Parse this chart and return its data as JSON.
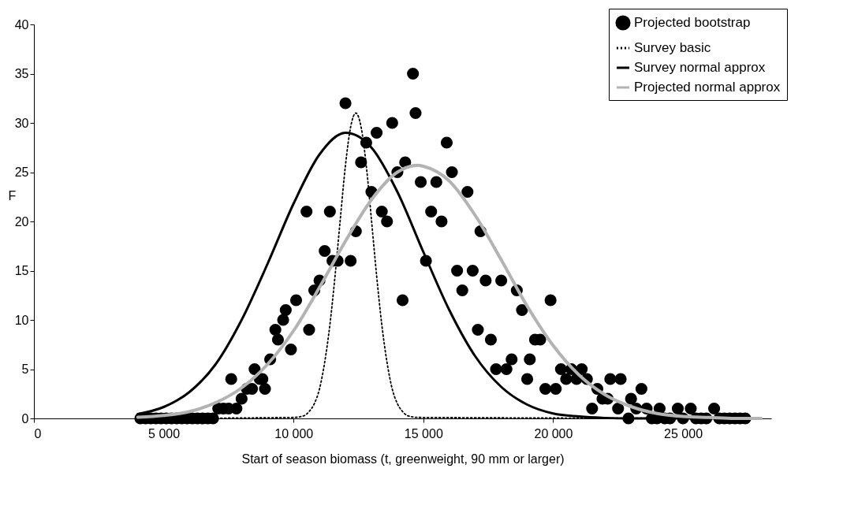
{
  "chart_data": {
    "type": "scatter",
    "xlabel": "Start of season biomass (t, greenweight, 90 mm or larger)",
    "ylabel": "F",
    "xlim": [
      0,
      28400
    ],
    "ylim": [
      0,
      40
    ],
    "xticks": [
      0,
      {
        "value": 5000,
        "label": "5 000"
      },
      {
        "value": 10000,
        "label": "10 000"
      },
      {
        "value": 15000,
        "label": "15 000"
      },
      {
        "value": 20000,
        "label": "20 000"
      },
      {
        "value": 25000,
        "label": "25 000"
      }
    ],
    "yticks": [
      0,
      5,
      10,
      15,
      20,
      25,
      30,
      35,
      40
    ],
    "grid": false,
    "legend": "top right",
    "series": [
      {
        "name": "Projected bootstrap",
        "type": "scatter",
        "marker": "circle",
        "color": "#000000",
        "x": [
          4100,
          4300,
          4500,
          4700,
          4900,
          5100,
          5300,
          5500,
          5700,
          5900,
          6100,
          6300,
          6500,
          6700,
          6900,
          7100,
          7300,
          7500,
          7600,
          7800,
          8000,
          8200,
          8400,
          8500,
          8700,
          8800,
          8900,
          9100,
          9300,
          9400,
          9600,
          9700,
          9900,
          10100,
          10500,
          10600,
          10800,
          11000,
          11200,
          11400,
          11500,
          11700,
          12000,
          12200,
          12400,
          12600,
          12800,
          13000,
          13200,
          13400,
          13600,
          13800,
          14000,
          14200,
          14300,
          14600,
          14700,
          14900,
          15100,
          15300,
          15500,
          15700,
          15900,
          16100,
          16300,
          16500,
          16700,
          16900,
          17100,
          17200,
          17400,
          17600,
          17800,
          18000,
          18200,
          18400,
          18600,
          18800,
          19000,
          19100,
          19300,
          19500,
          19700,
          19900,
          20100,
          20300,
          20500,
          20700,
          20900,
          21100,
          21300,
          21500,
          21700,
          21900,
          22100,
          22200,
          22500,
          22600,
          22900,
          23000,
          23200,
          23400,
          23600,
          23800,
          24000,
          24100,
          24300,
          24500,
          24800,
          25000,
          25300,
          25500,
          25700,
          25900,
          26200,
          26400,
          26600,
          26800,
          27000,
          27200,
          27400
        ],
        "values": [
          0,
          0,
          0,
          0,
          0,
          0,
          0,
          0,
          0,
          0,
          0,
          0,
          0,
          0,
          0,
          1,
          1,
          1,
          4,
          1,
          2,
          3,
          3,
          5,
          4,
          4,
          3,
          6,
          9,
          8,
          10,
          11,
          7,
          12,
          21,
          9,
          13,
          14,
          17,
          21,
          16,
          16,
          32,
          16,
          19,
          26,
          28,
          23,
          29,
          21,
          20,
          30,
          25,
          12,
          26,
          35,
          31,
          24,
          16,
          21,
          24,
          20,
          28,
          25,
          15,
          13,
          23,
          15,
          9,
          19,
          14,
          8,
          5,
          14,
          5,
          6,
          13,
          11,
          4,
          6,
          8,
          8,
          3,
          12,
          3,
          5,
          4,
          5,
          4,
          5,
          4,
          1,
          3,
          2,
          2,
          4,
          1,
          4,
          0,
          2,
          1,
          3,
          1,
          0,
          0,
          1,
          0,
          0,
          1,
          0,
          1,
          0,
          0,
          0,
          1,
          0,
          0,
          0,
          0,
          0,
          0
        ]
      },
      {
        "name": "Survey basic",
        "type": "line",
        "line_style": "dotted",
        "color": "#000000",
        "x": [
          4000,
          10000,
          10400,
          10600,
          10800,
          11000,
          11200,
          11400,
          11600,
          11800,
          12000,
          12200,
          12400,
          12600,
          12800,
          13000,
          13200,
          13400,
          13600,
          13800,
          14000,
          14200,
          14400,
          14800,
          28000
        ],
        "values": [
          0,
          0.1,
          0.27,
          0.7,
          1.5,
          3,
          5.7,
          9.5,
          14.5,
          20.2,
          25.7,
          29.6,
          31,
          29.6,
          25.7,
          20.2,
          14.5,
          9.5,
          5.7,
          3,
          1.5,
          0.7,
          0.27,
          0.1,
          0
        ]
      },
      {
        "name": "Survey normal approx",
        "type": "line",
        "line_style": "solid",
        "color": "#000000",
        "x": [
          4000,
          5000,
          6000,
          7000,
          8000,
          9000,
          10000,
          11000,
          12000,
          13000,
          14000,
          15000,
          16000,
          17000,
          18000,
          19000,
          20000,
          21000,
          22000,
          23000,
          24000,
          26000,
          28000
        ],
        "values": [
          0.44,
          1.16,
          2.7,
          5.5,
          10,
          15.7,
          21.8,
          26.8,
          29,
          27.5,
          23,
          16.9,
          11,
          6.3,
          3.2,
          1.4,
          0.5,
          0.2,
          0.05,
          0,
          0,
          0,
          0
        ]
      },
      {
        "name": "Projected normal approx",
        "type": "line",
        "line_style": "solid",
        "color": "#b3b3b3",
        "x": [
          4000,
          5000,
          6000,
          7000,
          8000,
          9000,
          10000,
          11000,
          12000,
          13000,
          14000,
          14800,
          15000,
          16000,
          17000,
          18000,
          19000,
          20000,
          21000,
          22000,
          23000,
          24000,
          25000,
          26000,
          27000,
          28000
        ],
        "values": [
          0.12,
          0.3,
          0.7,
          1.6,
          3.1,
          5.5,
          8.9,
          13.3,
          18,
          22.2,
          25,
          25.7,
          25.6,
          24.1,
          20.6,
          16.1,
          11.4,
          7.4,
          4.4,
          2.4,
          1.2,
          0.5,
          0.2,
          0.1,
          0,
          0
        ]
      }
    ]
  }
}
